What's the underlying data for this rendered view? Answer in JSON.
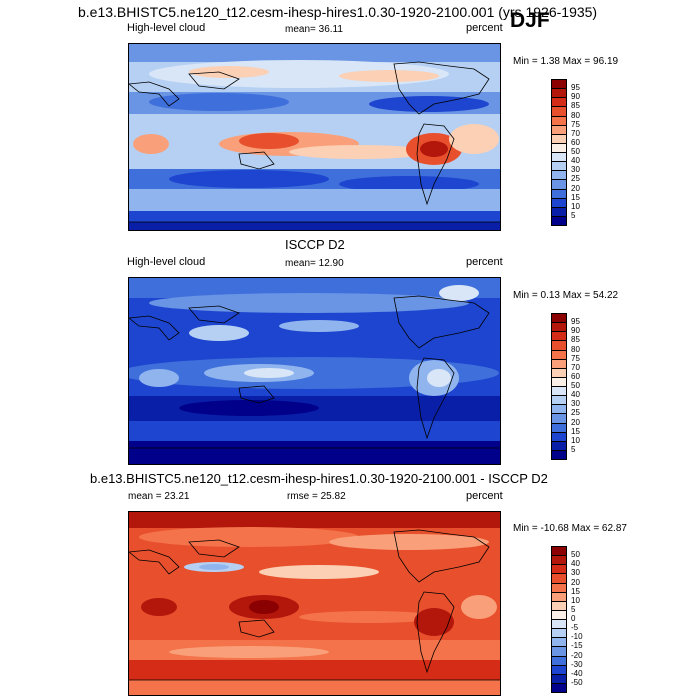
{
  "header": {
    "run_title": "b.e13.BHISTC5.ne120_t12.cesm-ihesp-hires1.0.30-1920-2100.001 (yrs 1926-1935)",
    "season": "DJF"
  },
  "panels": [
    {
      "id": "model",
      "title": "",
      "left_label": "High-level cloud",
      "center_label": "mean=  36.11",
      "right_label": "percent",
      "minmax": "Min =   1.38 Max =  96.19",
      "palette": "pos"
    },
    {
      "id": "obs",
      "title": "ISCCP D2",
      "left_label": "High-level cloud",
      "center_label": "mean=  12.90",
      "right_label": "percent",
      "minmax": "Min =   0.13 Max =  54.22",
      "palette": "pos"
    },
    {
      "id": "diff",
      "title": "b.e13.BHISTC5.ne120_t12.cesm-ihesp-hires1.0.30-1920-2100.001 - ISCCP D2",
      "left_label": "mean =  23.21",
      "center_label": "rmse =  25.82",
      "right_label": "percent",
      "minmax": "Min = -10.68 Max =  62.87",
      "palette": "diff"
    }
  ],
  "colorbars": {
    "pos": {
      "levels": [
        "95",
        "90",
        "85",
        "80",
        "75",
        "70",
        "60",
        "50",
        "40",
        "30",
        "25",
        "20",
        "15",
        "10",
        "5"
      ],
      "colors": [
        "#8b0000",
        "#b3160b",
        "#d42c16",
        "#e8502d",
        "#f4734a",
        "#f9a07a",
        "#fbd0b5",
        "#fbf0e8",
        "#d8e6f7",
        "#b5d0f3",
        "#8fb4ee",
        "#6a95e4",
        "#3f6fdb",
        "#1d45cf",
        "#0a1fa8",
        "#00008a"
      ]
    },
    "diff": {
      "levels": [
        "50",
        "40",
        "30",
        "20",
        "15",
        "10",
        "5",
        "0",
        "-5",
        "-10",
        "-15",
        "-20",
        "-30",
        "-40",
        "-50"
      ],
      "colors": [
        "#8b0000",
        "#b3160b",
        "#d42c16",
        "#e8502d",
        "#f4734a",
        "#f9a07a",
        "#fbd0b5",
        "#fbf0e8",
        "#d8e6f7",
        "#b5d0f3",
        "#8fb4ee",
        "#6a95e4",
        "#3f6fdb",
        "#1d45cf",
        "#0a1fa8",
        "#00008a"
      ]
    }
  },
  "chart_data": [
    {
      "type": "heatmap",
      "title": "",
      "variable": "High-level cloud",
      "units": "percent",
      "mean": 36.11,
      "min": 1.38,
      "max": 96.19,
      "levels": [
        5,
        10,
        15,
        20,
        25,
        30,
        40,
        50,
        60,
        70,
        75,
        80,
        85,
        90,
        95
      ]
    },
    {
      "type": "heatmap",
      "title": "ISCCP D2",
      "variable": "High-level cloud",
      "units": "percent",
      "mean": 12.9,
      "min": 0.13,
      "max": 54.22,
      "levels": [
        5,
        10,
        15,
        20,
        25,
        30,
        40,
        50,
        60,
        70,
        75,
        80,
        85,
        90,
        95
      ]
    },
    {
      "type": "heatmap",
      "title": "b.e13.BHISTC5.ne120_t12.cesm-ihesp-hires1.0.30-1920-2100.001 - ISCCP D2",
      "units": "percent",
      "mean": 23.21,
      "rmse": 25.82,
      "min": -10.68,
      "max": 62.87,
      "levels": [
        -50,
        -40,
        -30,
        -20,
        -15,
        -10,
        -5,
        0,
        5,
        10,
        15,
        20,
        30,
        40,
        50
      ]
    }
  ]
}
